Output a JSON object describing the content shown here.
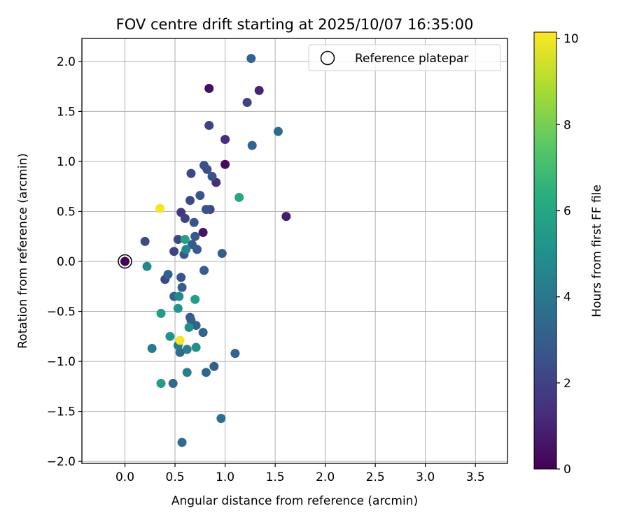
{
  "chart_data": {
    "type": "scatter",
    "title": "FOV centre drift starting at 2025/10/07 16:35:00",
    "xlabel": "Angular distance from reference (arcmin)",
    "ylabel": "Rotation from reference (arcmin)",
    "xlim": [
      -0.43,
      3.82
    ],
    "ylim": [
      -2.02,
      2.23
    ],
    "xticks": [
      0.0,
      0.5,
      1.0,
      1.5,
      2.0,
      2.5,
      3.0,
      3.5
    ],
    "xtick_labels": [
      "0.0",
      "0.5",
      "1.0",
      "1.5",
      "2.0",
      "2.5",
      "3.0",
      "3.5"
    ],
    "yticks": [
      -2.0,
      -1.5,
      -1.0,
      -0.5,
      0.0,
      0.5,
      1.0,
      1.5,
      2.0
    ],
    "ytick_labels": [
      "−2.0",
      "−1.5",
      "−1.0",
      "−0.5",
      "0.0",
      "0.5",
      "1.0",
      "1.5",
      "2.0"
    ],
    "grid": true,
    "legend": {
      "label": "Reference platepar",
      "position": "top-right"
    },
    "reference_point": {
      "x": 0.0,
      "y": 0.0
    },
    "colorbar": {
      "label": "Hours from first FF file",
      "colormap": "viridis",
      "range": [
        0,
        10.15
      ],
      "ticks": [
        0,
        2,
        4,
        6,
        8,
        10
      ],
      "tick_labels": [
        "0",
        "2",
        "4",
        "6",
        "8",
        "10"
      ]
    },
    "points": [
      {
        "x": 0.0,
        "y": 0.0,
        "h": 0.1
      },
      {
        "x": 0.84,
        "y": 1.73,
        "h": 0.4
      },
      {
        "x": 1.0,
        "y": 0.97,
        "h": 0.3
      },
      {
        "x": 0.78,
        "y": 0.29,
        "h": 0.6
      },
      {
        "x": 1.61,
        "y": 0.45,
        "h": 0.8
      },
      {
        "x": 1.34,
        "y": 1.71,
        "h": 1.0
      },
      {
        "x": 1.0,
        "y": 1.22,
        "h": 1.3
      },
      {
        "x": 0.91,
        "y": 0.79,
        "h": 1.3
      },
      {
        "x": 0.56,
        "y": 0.49,
        "h": 1.6
      },
      {
        "x": 1.22,
        "y": 1.59,
        "h": 2.0
      },
      {
        "x": 0.84,
        "y": 1.36,
        "h": 2.0
      },
      {
        "x": 0.66,
        "y": 0.88,
        "h": 2.2
      },
      {
        "x": 0.65,
        "y": 0.61,
        "h": 2.2
      },
      {
        "x": 0.85,
        "y": 0.52,
        "h": 2.0
      },
      {
        "x": 0.6,
        "y": 0.43,
        "h": 2.0
      },
      {
        "x": 0.53,
        "y": 0.22,
        "h": 2.2
      },
      {
        "x": 0.49,
        "y": 0.1,
        "h": 2.0
      },
      {
        "x": 0.2,
        "y": 0.2,
        "h": 2.3
      },
      {
        "x": 0.4,
        "y": -0.18,
        "h": 2.2
      },
      {
        "x": 0.56,
        "y": -0.16,
        "h": 2.5
      },
      {
        "x": 0.82,
        "y": 0.92,
        "h": 2.4
      },
      {
        "x": 0.79,
        "y": 0.96,
        "h": 2.5
      },
      {
        "x": 0.87,
        "y": 0.85,
        "h": 2.6
      },
      {
        "x": 0.75,
        "y": 0.66,
        "h": 2.7
      },
      {
        "x": 0.81,
        "y": 0.52,
        "h": 2.6
      },
      {
        "x": 0.69,
        "y": 0.39,
        "h": 2.7
      },
      {
        "x": 0.7,
        "y": 0.25,
        "h": 2.8
      },
      {
        "x": 0.67,
        "y": 0.17,
        "h": 2.9
      },
      {
        "x": 0.59,
        "y": 0.07,
        "h": 2.8
      },
      {
        "x": 0.72,
        "y": 0.12,
        "h": 2.9
      },
      {
        "x": 0.97,
        "y": 0.08,
        "h": 3.0
      },
      {
        "x": 0.79,
        "y": -0.09,
        "h": 3.0
      },
      {
        "x": 0.43,
        "y": -0.13,
        "h": 3.1
      },
      {
        "x": 0.57,
        "y": -0.26,
        "h": 3.0
      },
      {
        "x": 0.49,
        "y": -0.35,
        "h": 3.2
      },
      {
        "x": 0.65,
        "y": -0.56,
        "h": 2.9
      },
      {
        "x": 0.66,
        "y": -0.59,
        "h": 3.1
      },
      {
        "x": 0.71,
        "y": -0.64,
        "h": 3.2
      },
      {
        "x": 0.78,
        "y": -0.71,
        "h": 3.3
      },
      {
        "x": 1.1,
        "y": -0.92,
        "h": 3.2
      },
      {
        "x": 0.89,
        "y": -1.05,
        "h": 3.0
      },
      {
        "x": 0.81,
        "y": -1.11,
        "h": 3.3
      },
      {
        "x": 0.48,
        "y": -1.22,
        "h": 3.5
      },
      {
        "x": 0.55,
        "y": -0.91,
        "h": 3.5
      },
      {
        "x": 1.53,
        "y": 1.3,
        "h": 3.5
      },
      {
        "x": 1.27,
        "y": 1.16,
        "h": 3.3
      },
      {
        "x": 1.26,
        "y": 2.03,
        "h": 3.3
      },
      {
        "x": 0.57,
        "y": -1.81,
        "h": 3.5
      },
      {
        "x": 0.96,
        "y": -1.57,
        "h": 3.7
      },
      {
        "x": 0.62,
        "y": -1.11,
        "h": 4.3
      },
      {
        "x": 0.62,
        "y": -0.88,
        "h": 4.3
      },
      {
        "x": 0.27,
        "y": -0.87,
        "h": 4.2
      },
      {
        "x": 0.53,
        "y": -0.84,
        "h": 4.1
      },
      {
        "x": 0.22,
        "y": -0.05,
        "h": 4.7
      },
      {
        "x": 0.61,
        "y": 0.12,
        "h": 4.6
      },
      {
        "x": 0.54,
        "y": -0.35,
        "h": 4.8
      },
      {
        "x": 0.71,
        "y": -0.86,
        "h": 4.9
      },
      {
        "x": 0.64,
        "y": -0.66,
        "h": 5.0
      },
      {
        "x": 0.45,
        "y": -0.75,
        "h": 5.2
      },
      {
        "x": 0.36,
        "y": -1.22,
        "h": 5.5
      },
      {
        "x": 0.53,
        "y": -0.47,
        "h": 5.3
      },
      {
        "x": 0.36,
        "y": -0.52,
        "h": 5.6
      },
      {
        "x": 0.7,
        "y": -0.38,
        "h": 5.6
      },
      {
        "x": 0.6,
        "y": 0.22,
        "h": 5.8
      },
      {
        "x": 1.14,
        "y": 0.64,
        "h": 6.0
      },
      {
        "x": 0.35,
        "y": 0.53,
        "h": 10.0
      },
      {
        "x": 0.55,
        "y": -0.79,
        "h": 10.0
      }
    ]
  }
}
